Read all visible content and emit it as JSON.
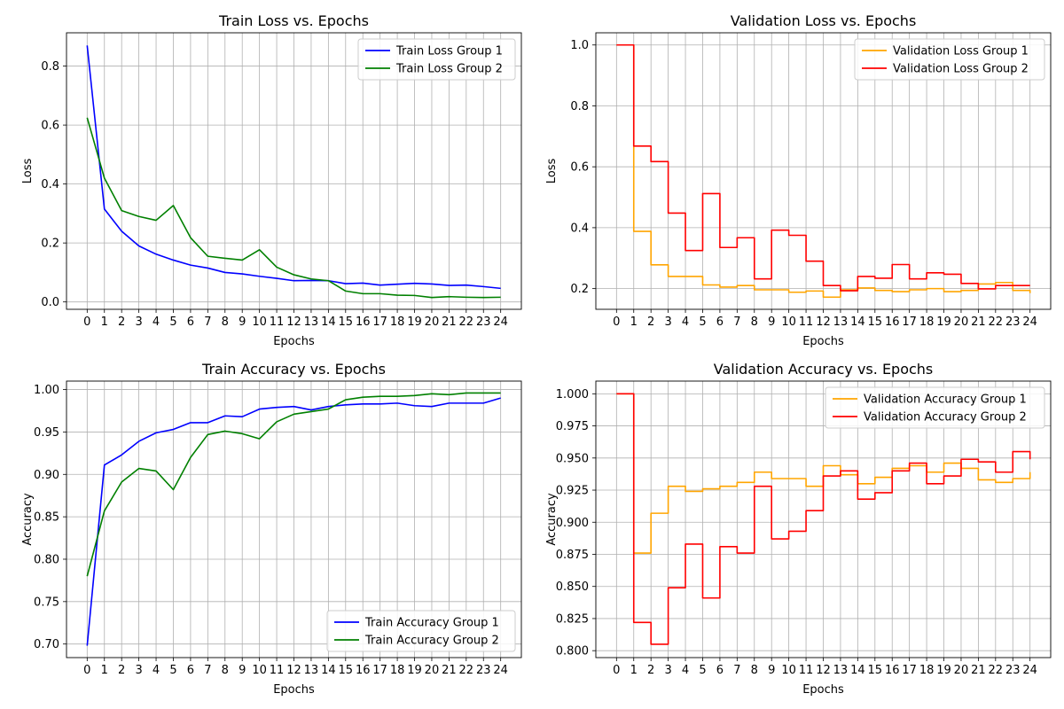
{
  "chart_data": [
    {
      "type": "line",
      "title": "Train Loss vs. Epochs",
      "xlabel": "Epochs",
      "ylabel": "Loss",
      "x": [
        0,
        1,
        2,
        3,
        4,
        5,
        6,
        7,
        8,
        9,
        10,
        11,
        12,
        13,
        14,
        15,
        16,
        17,
        18,
        19,
        20,
        21,
        22,
        23,
        24
      ],
      "xlim": [
        -1.2,
        25.2
      ],
      "ylim": [
        -0.025,
        0.913
      ],
      "yticks": [
        0.0,
        0.2,
        0.4,
        0.6,
        0.8
      ],
      "ytick_labels": [
        "0.0",
        "0.2",
        "0.4",
        "0.6",
        "0.8"
      ],
      "grid": true,
      "legend_position": "top-right",
      "series": [
        {
          "name": "Train Loss Group 1",
          "color": "#0000ff",
          "style": "line",
          "values": [
            0.87,
            0.315,
            0.24,
            0.19,
            0.162,
            0.142,
            0.125,
            0.115,
            0.1,
            0.095,
            0.087,
            0.08,
            0.072,
            0.073,
            0.072,
            0.062,
            0.064,
            0.057,
            0.06,
            0.063,
            0.061,
            0.056,
            0.057,
            0.052,
            0.046
          ]
        },
        {
          "name": "Train Loss Group 2",
          "color": "#008000",
          "style": "line",
          "values": [
            0.625,
            0.42,
            0.31,
            0.29,
            0.277,
            0.327,
            0.218,
            0.155,
            0.148,
            0.142,
            0.177,
            0.118,
            0.092,
            0.078,
            0.072,
            0.037,
            0.028,
            0.028,
            0.023,
            0.022,
            0.015,
            0.018,
            0.016,
            0.015,
            0.016
          ]
        }
      ]
    },
    {
      "type": "line",
      "title": "Validation Loss vs. Epochs",
      "xlabel": "Epochs",
      "ylabel": "Loss",
      "x": [
        0,
        1,
        2,
        3,
        4,
        5,
        6,
        7,
        8,
        9,
        10,
        11,
        12,
        13,
        14,
        15,
        16,
        17,
        18,
        19,
        20,
        21,
        22,
        23,
        24
      ],
      "xlim": [
        -1.2,
        25.2
      ],
      "ylim": [
        0.132,
        1.04
      ],
      "yticks": [
        0.2,
        0.4,
        0.6,
        0.8,
        1.0
      ],
      "ytick_labels": [
        "0.2",
        "0.4",
        "0.6",
        "0.8",
        "1.0"
      ],
      "grid": true,
      "legend_position": "top-right",
      "series": [
        {
          "name": "Validation Loss Group 1",
          "color": "#ffa500",
          "style": "step",
          "values": [
            1.0,
            0.388,
            0.278,
            0.24,
            0.24,
            0.212,
            0.205,
            0.21,
            0.196,
            0.196,
            0.188,
            0.192,
            0.172,
            0.196,
            0.202,
            0.194,
            0.19,
            0.196,
            0.2,
            0.19,
            0.194,
            0.215,
            0.22,
            0.194,
            0.185
          ]
        },
        {
          "name": "Validation Loss Group 2",
          "color": "#ff0000",
          "style": "step",
          "values": [
            1.0,
            0.668,
            0.617,
            0.448,
            0.325,
            0.512,
            0.335,
            0.367,
            0.232,
            0.392,
            0.375,
            0.29,
            0.21,
            0.193,
            0.24,
            0.234,
            0.279,
            0.232,
            0.252,
            0.247,
            0.217,
            0.199,
            0.21,
            0.21,
            0.21
          ]
        }
      ]
    },
    {
      "type": "line",
      "title": "Train Accuracy vs. Epochs",
      "xlabel": "Epochs",
      "ylabel": "Accuracy",
      "x": [
        0,
        1,
        2,
        3,
        4,
        5,
        6,
        7,
        8,
        9,
        10,
        11,
        12,
        13,
        14,
        15,
        16,
        17,
        18,
        19,
        20,
        21,
        22,
        23,
        24
      ],
      "xlim": [
        -1.2,
        25.2
      ],
      "ylim": [
        0.684,
        1.01
      ],
      "yticks": [
        0.7,
        0.75,
        0.8,
        0.85,
        0.9,
        0.95,
        1.0
      ],
      "ytick_labels": [
        "0.70",
        "0.75",
        "0.80",
        "0.85",
        "0.90",
        "0.95",
        "1.00"
      ],
      "grid": true,
      "legend_position": "bottom-right",
      "series": [
        {
          "name": "Train Accuracy Group 1",
          "color": "#0000ff",
          "style": "line",
          "values": [
            0.698,
            0.911,
            0.923,
            0.939,
            0.949,
            0.953,
            0.961,
            0.961,
            0.969,
            0.968,
            0.977,
            0.979,
            0.98,
            0.976,
            0.98,
            0.982,
            0.983,
            0.983,
            0.984,
            0.981,
            0.98,
            0.984,
            0.984,
            0.984,
            0.99
          ]
        },
        {
          "name": "Train Accuracy Group 2",
          "color": "#008000",
          "style": "line",
          "values": [
            0.78,
            0.857,
            0.891,
            0.907,
            0.904,
            0.882,
            0.92,
            0.947,
            0.951,
            0.948,
            0.942,
            0.962,
            0.971,
            0.974,
            0.977,
            0.988,
            0.991,
            0.992,
            0.992,
            0.993,
            0.995,
            0.994,
            0.996,
            0.996,
            0.996
          ]
        }
      ]
    },
    {
      "type": "line",
      "title": "Validation Accuracy vs. Epochs",
      "xlabel": "Epochs",
      "ylabel": "Accuracy",
      "x": [
        0,
        1,
        2,
        3,
        4,
        5,
        6,
        7,
        8,
        9,
        10,
        11,
        12,
        13,
        14,
        15,
        16,
        17,
        18,
        19,
        20,
        21,
        22,
        23,
        24
      ],
      "xlim": [
        -1.2,
        25.2
      ],
      "ylim": [
        0.7946,
        1.0099
      ],
      "yticks": [
        0.8,
        0.825,
        0.85,
        0.875,
        0.9,
        0.925,
        0.95,
        0.975,
        1.0
      ],
      "ytick_labels": [
        "0.800",
        "0.825",
        "0.850",
        "0.875",
        "0.900",
        "0.925",
        "0.950",
        "0.975",
        "1.000"
      ],
      "grid": true,
      "legend_position": "top-right",
      "series": [
        {
          "name": "Validation Accuracy Group 1",
          "color": "#ffa500",
          "style": "step",
          "values": [
            1.0,
            0.876,
            0.907,
            0.928,
            0.924,
            0.926,
            0.928,
            0.931,
            0.939,
            0.934,
            0.934,
            0.928,
            0.944,
            0.937,
            0.93,
            0.935,
            0.942,
            0.944,
            0.939,
            0.946,
            0.942,
            0.933,
            0.931,
            0.934,
            0.939
          ]
        },
        {
          "name": "Validation Accuracy Group 2",
          "color": "#ff0000",
          "style": "step",
          "values": [
            1.0,
            0.822,
            0.805,
            0.849,
            0.883,
            0.841,
            0.881,
            0.876,
            0.928,
            0.887,
            0.893,
            0.909,
            0.936,
            0.94,
            0.918,
            0.923,
            0.94,
            0.946,
            0.93,
            0.936,
            0.949,
            0.947,
            0.939,
            0.955,
            0.949
          ]
        }
      ]
    }
  ]
}
